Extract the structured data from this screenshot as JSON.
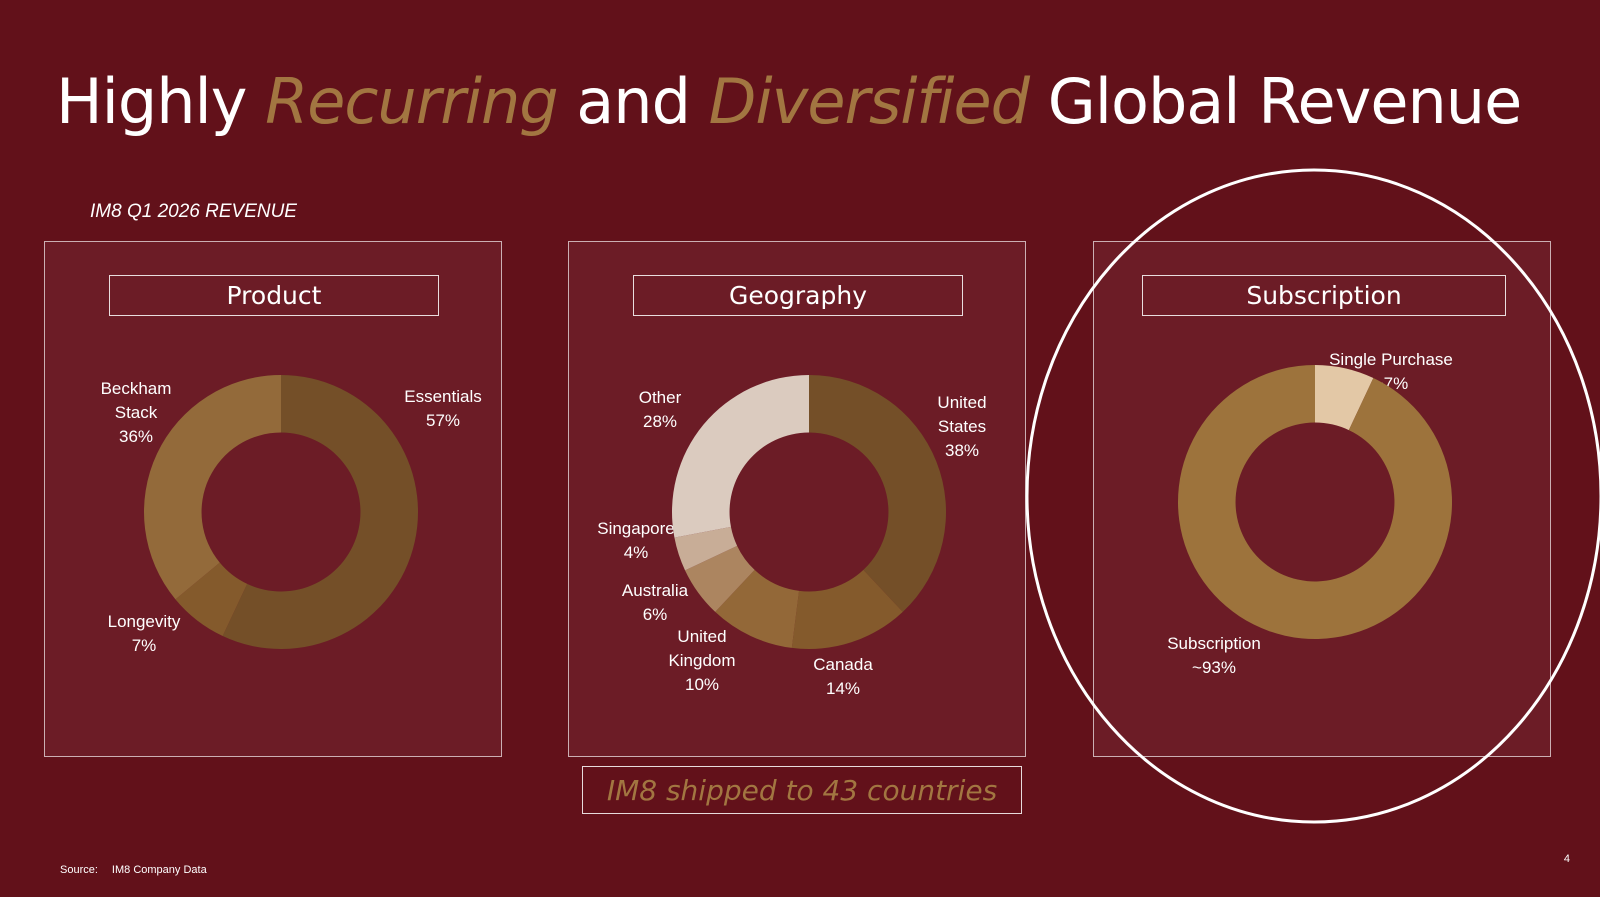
{
  "title": {
    "part1": "Highly ",
    "em1": "Recurring",
    "part2": " and ",
    "em2": "Diversified",
    "part3": " Global Revenue"
  },
  "subtitle": "IM8 Q1 2026 REVENUE",
  "callout": "IM8 shipped to 43 countries",
  "source": {
    "label": "Source:",
    "text": "IM8 Company Data"
  },
  "page_number": "4",
  "colors": {
    "background": "#62111a",
    "panel": "#6c1c26",
    "accent": "#a27641"
  },
  "chart_data": [
    {
      "type": "pie",
      "title": "Product",
      "hole": 0.58,
      "slices": [
        {
          "label": [
            "Essentials",
            "57%"
          ],
          "value": 57,
          "color": "#744f28"
        },
        {
          "label": [
            "Longevity",
            "7%"
          ],
          "value": 7,
          "color": "#845a2c"
        },
        {
          "label": [
            "Beckham",
            "Stack",
            "36%"
          ],
          "value": 36,
          "color": "#936a3a"
        }
      ]
    },
    {
      "type": "pie",
      "title": "Geography",
      "hole": 0.58,
      "slices": [
        {
          "label": [
            "United",
            "States",
            "38%"
          ],
          "value": 38,
          "color": "#744f28"
        },
        {
          "label": [
            "Canada",
            "14%"
          ],
          "value": 14,
          "color": "#845a2c"
        },
        {
          "label": [
            "United",
            "Kingdom",
            "10%"
          ],
          "value": 10,
          "color": "#936838"
        },
        {
          "label": [
            "Australia",
            "6%"
          ],
          "value": 6,
          "color": "#ac8560"
        },
        {
          "label": [
            "Singapore",
            "4%"
          ],
          "value": 4,
          "color": "#c8ad97"
        },
        {
          "label": [
            "Other",
            "28%"
          ],
          "value": 28,
          "color": "#dbcbbf"
        }
      ]
    },
    {
      "type": "pie",
      "title": "Subscription",
      "hole": 0.58,
      "slices": [
        {
          "label": [
            "Single Purchase",
            "~7%"
          ],
          "value": 7,
          "color": "#e3c8a6"
        },
        {
          "label": [
            "Subscription",
            "~93%"
          ],
          "value": 93,
          "color": "#9d733c"
        }
      ]
    }
  ]
}
